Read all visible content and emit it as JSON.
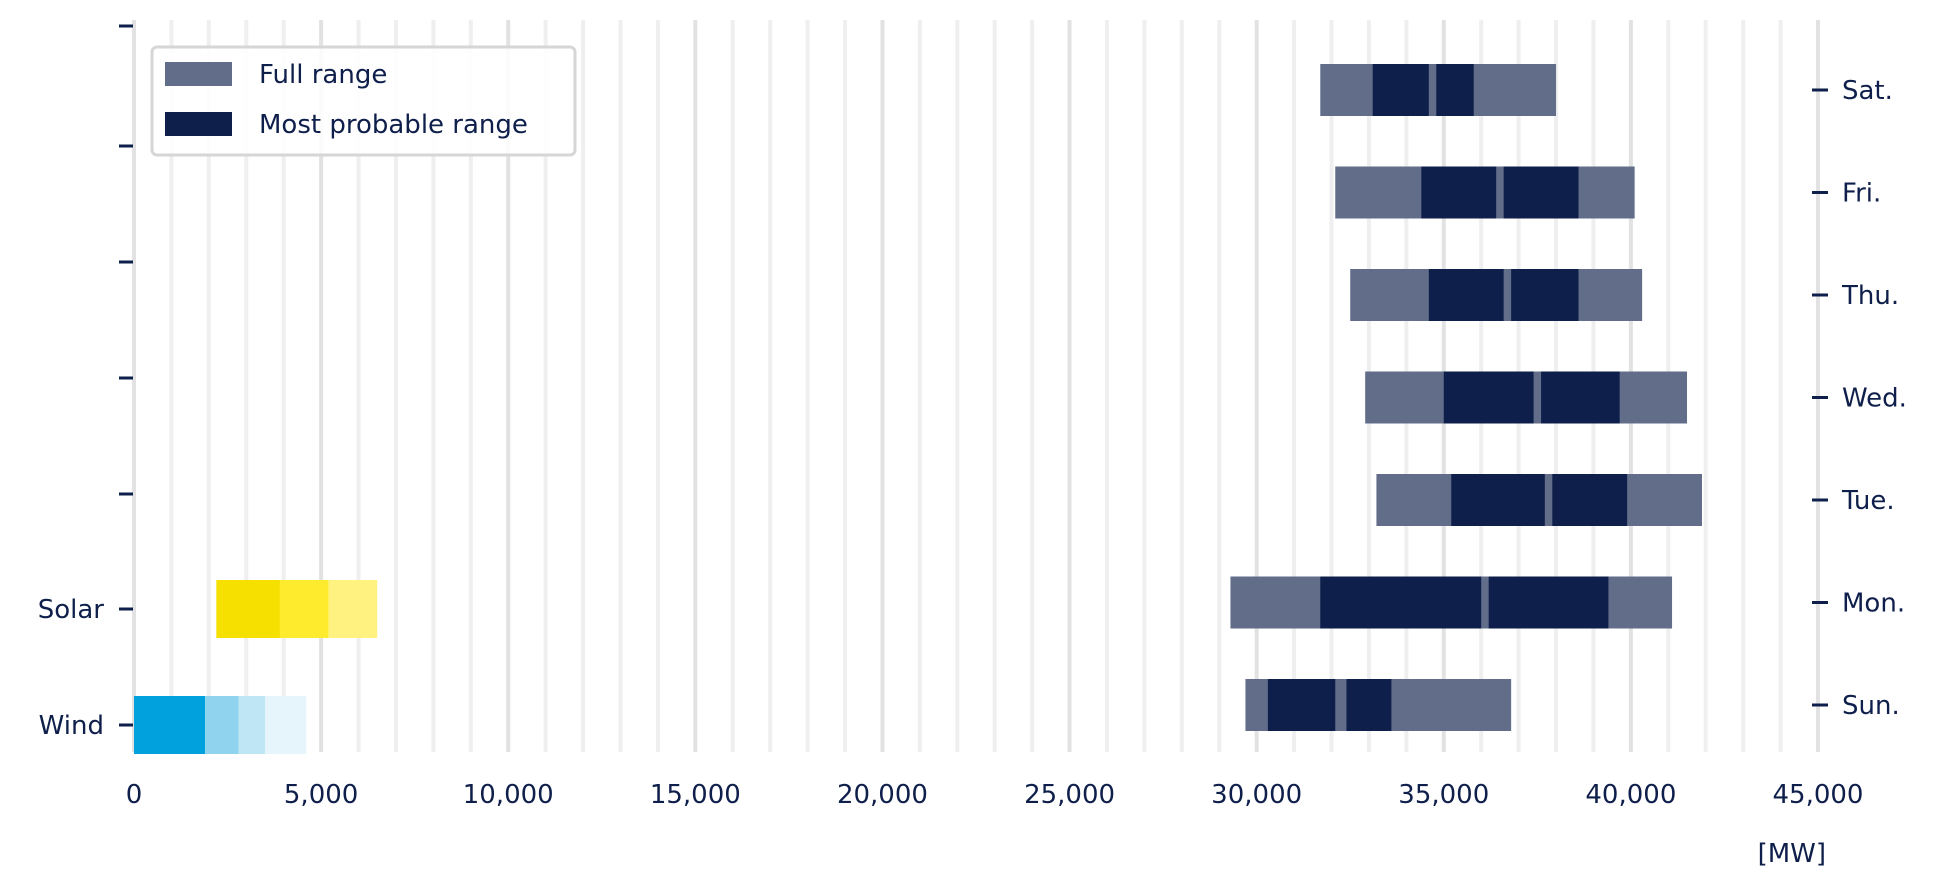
{
  "chart_data": {
    "type": "bar",
    "title": "",
    "xlabel": "",
    "unit_label": "[MW]",
    "xlim": [
      0,
      45000
    ],
    "x_ticks": [
      0,
      5000,
      10000,
      15000,
      20000,
      25000,
      30000,
      35000,
      40000,
      45000
    ],
    "x_tick_labels": [
      "0",
      "5,000",
      "10,000",
      "15,000",
      "20,000",
      "25,000",
      "30,000",
      "35,000",
      "40,000",
      "45,000"
    ],
    "grid": true,
    "legend_position": "top-left",
    "legend": [
      {
        "label": "Full range",
        "color": "#626d8a"
      },
      {
        "label": "Most probable range",
        "color": "#0f1f4b"
      }
    ],
    "left_axis_labels": [
      "Solar",
      "Wind"
    ],
    "right_axis_labels": [
      "Sat.",
      "Fri.",
      "Thu.",
      "Wed.",
      "Tue.",
      "Mon.",
      "Sun."
    ],
    "colors": {
      "full_range": "#626d8a",
      "most_probable": "#0f1f4b",
      "text": "#0f1f4b",
      "solar": [
        "#f5e000",
        "#ffeb2e",
        "#fff280"
      ],
      "wind": [
        "#00a1dc",
        "#8fd3ee",
        "#bfe6f5",
        "#e6f5fb"
      ]
    },
    "days": [
      {
        "label": "Sat.",
        "full_range": [
          31700,
          38000
        ],
        "most_probable": [
          [
            33100,
            34600
          ],
          [
            34800,
            35800
          ]
        ]
      },
      {
        "label": "Fri.",
        "full_range": [
          32100,
          40100
        ],
        "most_probable": [
          [
            34400,
            36400
          ],
          [
            36600,
            38600
          ]
        ]
      },
      {
        "label": "Thu.",
        "full_range": [
          32500,
          40300
        ],
        "most_probable": [
          [
            34600,
            36600
          ],
          [
            36800,
            38600
          ]
        ]
      },
      {
        "label": "Wed.",
        "full_range": [
          32900,
          41500
        ],
        "most_probable": [
          [
            35000,
            37400
          ],
          [
            37600,
            39700
          ]
        ]
      },
      {
        "label": "Tue.",
        "full_range": [
          33200,
          41900
        ],
        "most_probable": [
          [
            35200,
            37700
          ],
          [
            37900,
            39900
          ]
        ]
      },
      {
        "label": "Mon.",
        "full_range": [
          29300,
          41100
        ],
        "most_probable": [
          [
            31700,
            36000
          ],
          [
            36200,
            39400
          ]
        ]
      },
      {
        "label": "Sun.",
        "full_range": [
          29700,
          36800
        ],
        "most_probable": [
          [
            30300,
            32100
          ],
          [
            32400,
            33600
          ]
        ]
      }
    ],
    "renewables": [
      {
        "label": "Solar",
        "segments": [
          [
            2200,
            3900
          ],
          [
            3900,
            5200
          ],
          [
            5200,
            6500
          ]
        ]
      },
      {
        "label": "Wind",
        "segments": [
          [
            0,
            1900
          ],
          [
            1900,
            2800
          ],
          [
            2800,
            3500
          ],
          [
            3500,
            4600
          ]
        ]
      }
    ]
  }
}
